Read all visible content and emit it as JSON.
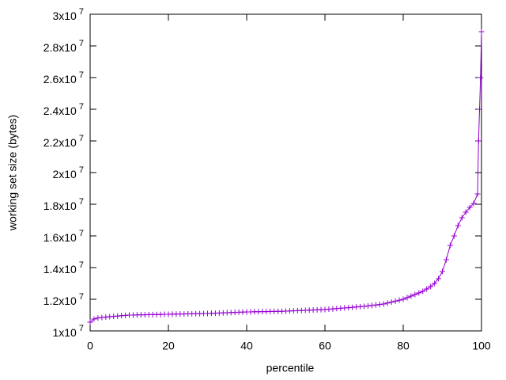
{
  "chart_data": {
    "type": "line",
    "xlabel": "percentile",
    "ylabel": "working set size (bytes)",
    "xlim": [
      0,
      100
    ],
    "xticks": [
      0,
      20,
      40,
      60,
      80,
      100
    ],
    "ylim": [
      10000000,
      30000000
    ],
    "yticks": [
      {
        "value": 10000000,
        "label": "1x10^7"
      },
      {
        "value": 12000000,
        "label": "1.2x10^7"
      },
      {
        "value": 14000000,
        "label": "1.4x10^7"
      },
      {
        "value": 16000000,
        "label": "1.6x10^7"
      },
      {
        "value": 18000000,
        "label": "1.8x10^7"
      },
      {
        "value": 20000000,
        "label": "2x10^7"
      },
      {
        "value": 22000000,
        "label": "2.2x10^7"
      },
      {
        "value": 24000000,
        "label": "2.4x10^7"
      },
      {
        "value": 26000000,
        "label": "2.6x10^7"
      },
      {
        "value": 28000000,
        "label": "2.8x10^7"
      },
      {
        "value": 30000000,
        "label": "3x10^7"
      }
    ],
    "x": [
      0,
      1,
      2,
      3,
      4,
      5,
      6,
      7,
      8,
      9,
      10,
      11,
      12,
      13,
      14,
      15,
      16,
      17,
      18,
      19,
      20,
      21,
      22,
      23,
      24,
      25,
      26,
      27,
      28,
      29,
      30,
      31,
      32,
      33,
      34,
      35,
      36,
      37,
      38,
      39,
      40,
      41,
      42,
      43,
      44,
      45,
      46,
      47,
      48,
      49,
      50,
      51,
      52,
      53,
      54,
      55,
      56,
      57,
      58,
      59,
      60,
      61,
      62,
      63,
      64,
      65,
      66,
      67,
      68,
      69,
      70,
      71,
      72,
      73,
      74,
      75,
      76,
      77,
      78,
      79,
      80,
      81,
      82,
      83,
      84,
      85,
      86,
      87,
      88,
      89,
      90,
      91,
      92,
      93,
      94,
      95,
      96,
      97,
      98,
      99,
      99.25,
      99.5,
      99.75,
      100
    ],
    "series": [
      {
        "color": "#9400d3",
        "values": [
          10550000,
          10750000,
          10820000,
          10850000,
          10870000,
          10900000,
          10920000,
          10940000,
          10960000,
          10980000,
          11000000,
          11000000,
          11010000,
          11020000,
          11020000,
          11030000,
          11030000,
          11040000,
          11040000,
          11050000,
          11050000,
          11060000,
          11060000,
          11070000,
          11070000,
          11080000,
          11080000,
          11090000,
          11090000,
          11100000,
          11100000,
          11110000,
          11120000,
          11130000,
          11140000,
          11150000,
          11160000,
          11170000,
          11180000,
          11190000,
          11200000,
          11200000,
          11210000,
          11210000,
          11220000,
          11220000,
          11230000,
          11230000,
          11240000,
          11240000,
          11250000,
          11260000,
          11270000,
          11280000,
          11290000,
          11300000,
          11310000,
          11320000,
          11330000,
          11340000,
          11350000,
          11370000,
          11390000,
          11410000,
          11430000,
          11450000,
          11470000,
          11490000,
          11510000,
          11530000,
          11550000,
          11580000,
          11610000,
          11640000,
          11670000,
          11700000,
          11760000,
          11820000,
          11880000,
          11940000,
          12000000,
          12100000,
          12200000,
          12300000,
          12400000,
          12500000,
          12650000,
          12800000,
          13000000,
          13300000,
          13750000,
          14500000,
          15400000,
          16000000,
          16650000,
          17150000,
          17500000,
          17800000,
          18050000,
          18650000,
          22000000,
          24000000,
          26000000,
          28900000
        ]
      }
    ]
  }
}
